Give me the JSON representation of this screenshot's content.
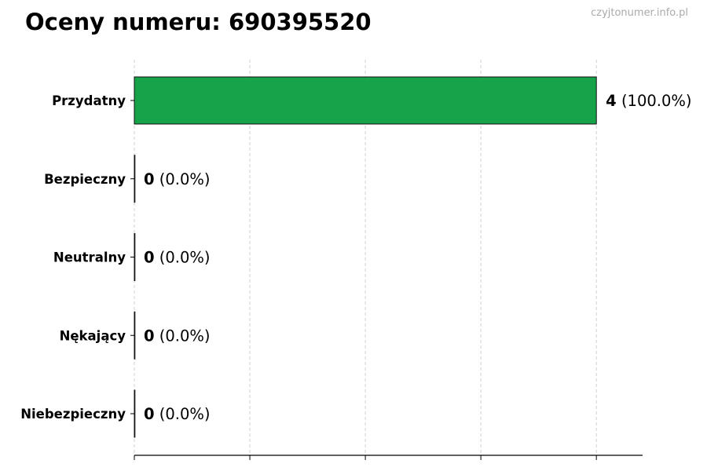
{
  "chart_data": {
    "type": "bar",
    "orientation": "horizontal",
    "title": "Oceny numeru: 690395520",
    "watermark": "czyjtonumer.info.pl",
    "categories": [
      "Przydatny",
      "Bezpieczny",
      "Neutralny",
      "Nękający",
      "Niebezpieczny"
    ],
    "values": [
      4,
      0,
      0,
      0,
      0
    ],
    "value_labels": [
      "4",
      "0",
      "0",
      "0",
      "0"
    ],
    "percent_labels": [
      "(100.0%)",
      "(0.0%)",
      "(0.0%)",
      "(0.0%)",
      "(0.0%)"
    ],
    "xlim": [
      0,
      4.4
    ],
    "xticks": [
      0,
      1,
      2,
      3,
      4
    ],
    "grid": "x dashed",
    "colors": [
      "#17a34a",
      "#17a34a",
      "#17a34a",
      "#17a34a",
      "#17a34a"
    ],
    "xlabel": "",
    "ylabel": ""
  }
}
